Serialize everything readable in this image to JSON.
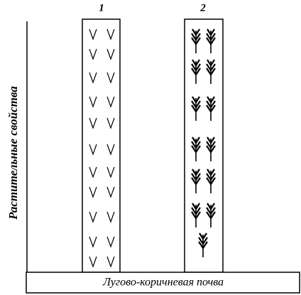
{
  "columns": [
    {
      "label": "1"
    },
    {
      "label": "2"
    }
  ],
  "y_axis_label": "Растительные свойства",
  "base_label": "Лугово-коричневая почва"
}
